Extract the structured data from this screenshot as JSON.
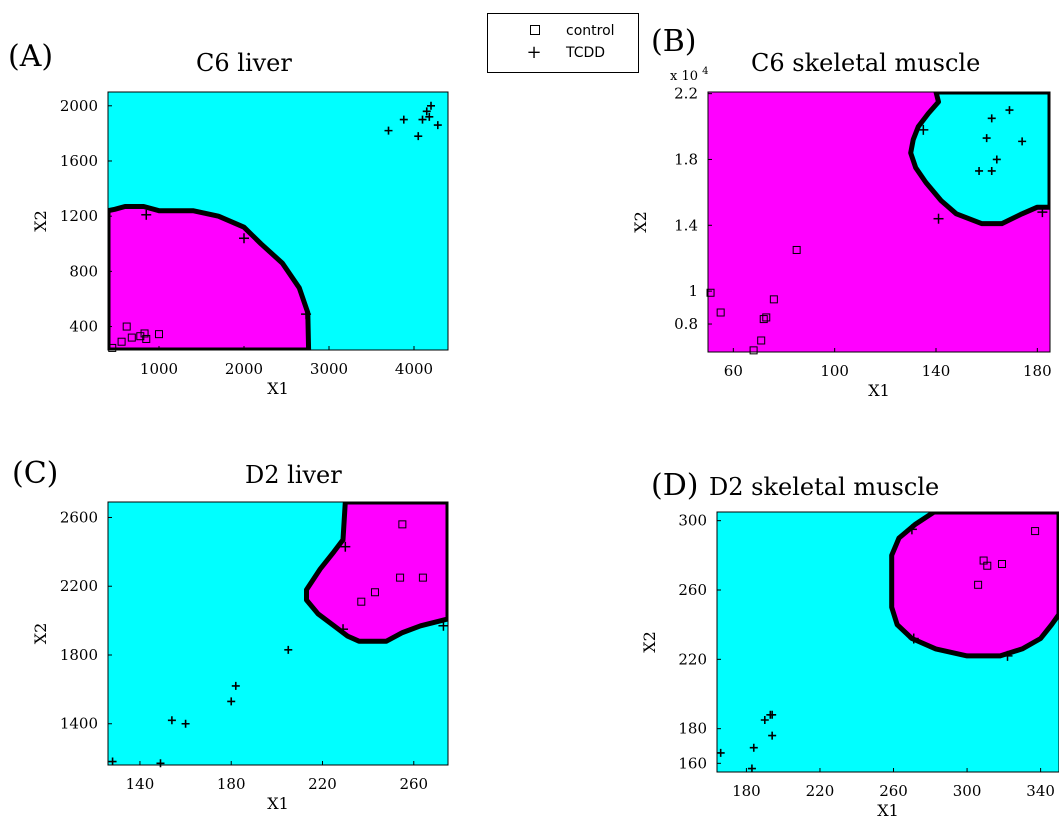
{
  "legend": {
    "entries": [
      {
        "symbol": "square",
        "label": "control"
      },
      {
        "symbol": "plus",
        "label": "TCDD"
      }
    ]
  },
  "colors": {
    "magenta": "#ff00ff",
    "cyan": "#00ffff",
    "boundary": "#000000"
  },
  "chart_data": [
    {
      "type": "scatter",
      "panel_label": "(A)",
      "title": "C6 liver",
      "xlabel": "X1",
      "ylabel": "X2",
      "y_exponent": "",
      "xlim": [
        400,
        4400
      ],
      "ylim": [
        230,
        2100
      ],
      "xticks": [
        1000,
        2000,
        3000,
        4000
      ],
      "yticks": [
        400,
        800,
        1200,
        1600,
        2000
      ],
      "background_region": "cyan",
      "region_color": "magenta",
      "region": [
        [
          400,
          230
        ],
        [
          400,
          1240
        ],
        [
          480,
          1250
        ],
        [
          600,
          1270
        ],
        [
          820,
          1270
        ],
        [
          1000,
          1240
        ],
        [
          1400,
          1240
        ],
        [
          1700,
          1200
        ],
        [
          2000,
          1120
        ],
        [
          2200,
          1000
        ],
        [
          2450,
          860
        ],
        [
          2650,
          680
        ],
        [
          2750,
          500
        ],
        [
          2760,
          230
        ]
      ],
      "region_ticks": [
        [
          850,
          1210
        ],
        [
          2000,
          1040
        ],
        [
          2730,
          490
        ]
      ],
      "series": [
        {
          "name": "control",
          "marker": "square",
          "points": [
            [
              450,
              245
            ],
            [
              560,
              290
            ],
            [
              620,
              400
            ],
            [
              680,
              320
            ],
            [
              780,
              330
            ],
            [
              830,
              350
            ],
            [
              850,
              310
            ],
            [
              1000,
              345
            ]
          ]
        },
        {
          "name": "TCDD",
          "marker": "plus",
          "points": [
            [
              3700,
              1820
            ],
            [
              3880,
              1900
            ],
            [
              4050,
              1780
            ],
            [
              4100,
              1900
            ],
            [
              4150,
              1960
            ],
            [
              4200,
              2000
            ],
            [
              4280,
              1860
            ],
            [
              4180,
              1920
            ]
          ]
        }
      ]
    },
    {
      "type": "scatter",
      "panel_label": "(B)",
      "title": "C6 skeletal muscle",
      "xlabel": "X1",
      "ylabel": "X2",
      "y_exponent": "x 10",
      "y_exponent_power": "4",
      "xlim": [
        50,
        185
      ],
      "ylim": [
        0.63,
        2.21
      ],
      "xticks": [
        60,
        100,
        140,
        180
      ],
      "ytick_labels": [
        "0.8",
        "1",
        "1.4",
        "1.8",
        "2.2"
      ],
      "yticks": [
        0.8,
        1.0,
        1.4,
        1.8,
        2.2
      ],
      "background_region": "magenta",
      "region_color": "cyan",
      "region": [
        [
          140,
          2.21
        ],
        [
          141,
          2.15
        ],
        [
          137,
          2.08
        ],
        [
          133,
          2.0
        ],
        [
          131,
          1.92
        ],
        [
          130,
          1.84
        ],
        [
          132,
          1.75
        ],
        [
          136,
          1.66
        ],
        [
          142,
          1.55
        ],
        [
          148,
          1.47
        ],
        [
          158,
          1.41
        ],
        [
          166,
          1.41
        ],
        [
          174,
          1.47
        ],
        [
          180,
          1.51
        ],
        [
          185,
          1.51
        ],
        [
          185,
          2.21
        ]
      ],
      "region_ticks": [
        [
          135,
          1.98
        ],
        [
          141,
          1.44
        ],
        [
          182,
          1.48
        ]
      ],
      "series": [
        {
          "name": "control",
          "marker": "square",
          "points": [
            [
              51,
              0.99
            ],
            [
              55,
              0.87
            ],
            [
              68,
              0.64
            ],
            [
              71,
              0.7
            ],
            [
              72,
              0.83
            ],
            [
              73,
              0.84
            ],
            [
              76,
              0.95
            ],
            [
              85,
              1.25
            ]
          ]
        },
        {
          "name": "TCDD",
          "marker": "plus",
          "points": [
            [
              157,
              1.73
            ],
            [
              160,
              1.93
            ],
            [
              162,
              1.73
            ],
            [
              162,
              2.05
            ],
            [
              164,
              1.8
            ],
            [
              169,
              2.1
            ],
            [
              174,
              1.91
            ]
          ]
        }
      ]
    },
    {
      "type": "scatter",
      "panel_label": "(C)",
      "title": "D2 liver",
      "xlabel": "X1",
      "ylabel": "X2",
      "y_exponent": "",
      "xlim": [
        126,
        275
      ],
      "ylim": [
        1160,
        2690
      ],
      "xticks": [
        140,
        180,
        220,
        260
      ],
      "yticks": [
        1400,
        1800,
        2200,
        2600
      ],
      "background_region": "cyan",
      "region_color": "magenta",
      "region": [
        [
          230,
          2690
        ],
        [
          229,
          2470
        ],
        [
          225,
          2400
        ],
        [
          219,
          2300
        ],
        [
          213,
          2180
        ],
        [
          213,
          2120
        ],
        [
          218,
          2040
        ],
        [
          225,
          1970
        ],
        [
          231,
          1910
        ],
        [
          236,
          1880
        ],
        [
          248,
          1880
        ],
        [
          255,
          1930
        ],
        [
          263,
          1970
        ],
        [
          275,
          2010
        ],
        [
          275,
          2690
        ]
      ],
      "region_ticks": [
        [
          230,
          2430
        ],
        [
          229,
          1950
        ],
        [
          273,
          1970
        ]
      ],
      "series": [
        {
          "name": "control",
          "marker": "square",
          "points": [
            [
              237,
              2110
            ],
            [
              243,
              2165
            ],
            [
              254,
              2250
            ],
            [
              255,
              2560
            ],
            [
              264,
              2250
            ]
          ]
        },
        {
          "name": "TCDD",
          "marker": "plus",
          "points": [
            [
              128,
              1180
            ],
            [
              149,
              1170
            ],
            [
              154,
              1420
            ],
            [
              160,
              1400
            ],
            [
              180,
              1530
            ],
            [
              182,
              1620
            ],
            [
              205,
              1830
            ]
          ]
        }
      ]
    },
    {
      "type": "scatter",
      "panel_label": "(D)",
      "title": "D2 skeletal muscle",
      "xlabel": "X1",
      "ylabel": "X2",
      "y_exponent": "",
      "xlim": [
        164,
        350
      ],
      "ylim": [
        155,
        305
      ],
      "xticks": [
        180,
        220,
        260,
        300,
        340
      ],
      "yticks": [
        160,
        180,
        220,
        260,
        300
      ],
      "background_region": "cyan",
      "region_color": "magenta",
      "region": [
        [
          282,
          305
        ],
        [
          272,
          298
        ],
        [
          263,
          290
        ],
        [
          259,
          280
        ],
        [
          259,
          250
        ],
        [
          262,
          240
        ],
        [
          270,
          232
        ],
        [
          283,
          226
        ],
        [
          300,
          222
        ],
        [
          318,
          222
        ],
        [
          330,
          226
        ],
        [
          340,
          232
        ],
        [
          346,
          240
        ],
        [
          350,
          246
        ],
        [
          350,
          305
        ]
      ],
      "region_ticks": [
        [
          270,
          295
        ],
        [
          271,
          232
        ],
        [
          322,
          222
        ]
      ],
      "series": [
        {
          "name": "control",
          "marker": "square",
          "points": [
            [
              306,
              263
            ],
            [
              309,
              277
            ],
            [
              311,
              274
            ],
            [
              319,
              275
            ],
            [
              337,
              294
            ]
          ]
        },
        {
          "name": "TCDD",
          "marker": "plus",
          "points": [
            [
              166,
              166
            ],
            [
              183,
              157
            ],
            [
              184,
              169
            ],
            [
              190,
              185
            ],
            [
              193,
              188
            ],
            [
              194,
              188
            ],
            [
              194,
              176
            ]
          ]
        }
      ]
    }
  ]
}
